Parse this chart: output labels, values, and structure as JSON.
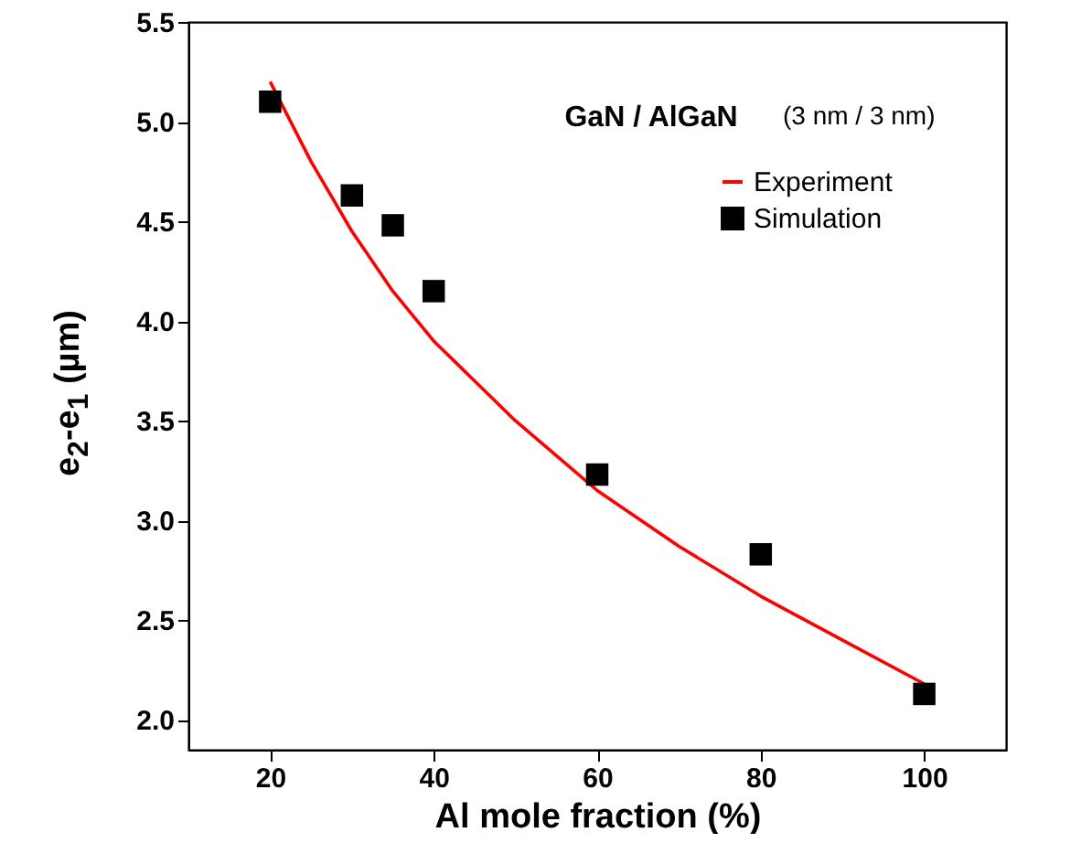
{
  "chart_data": {
    "type": "scatter",
    "xlabel": "Al mole fraction (%)",
    "ylabel": "e$_{2}$-e$_{1}$ (µm)",
    "annotations": [
      "GaN / AlGaN",
      "(3 nm / 3 nm)"
    ],
    "xlim": [
      10,
      110
    ],
    "xticks": [
      20,
      40,
      60,
      80,
      100
    ],
    "ylim": [
      1.85,
      5.5
    ],
    "yticks": [
      {
        "value": 2,
        "label": "2.0"
      },
      2.5,
      {
        "value": 3,
        "label": "3.0"
      },
      3.5,
      {
        "value": 4,
        "label": "4.0"
      },
      4.5,
      {
        "value": 5,
        "label": "5.0"
      },
      5.5
    ],
    "grid": false,
    "legend": "top right",
    "series": [
      {
        "name": "Experiment",
        "type": "line",
        "color": "#ff0000",
        "line_style": "solid",
        "x": [
          20,
          25,
          30,
          35,
          40,
          50,
          60,
          70,
          80,
          90,
          100
        ],
        "values": [
          5.2,
          4.8,
          4.45,
          4.15,
          3.9,
          3.5,
          3.15,
          2.87,
          2.62,
          2.4,
          2.18
        ]
      },
      {
        "name": "Simulation",
        "marker": "square",
        "color": "#000000",
        "x": [
          20,
          30,
          35,
          40,
          60,
          80,
          100
        ],
        "values": [
          5.1,
          4.63,
          4.48,
          4.15,
          3.23,
          2.83,
          2.13
        ]
      }
    ]
  }
}
